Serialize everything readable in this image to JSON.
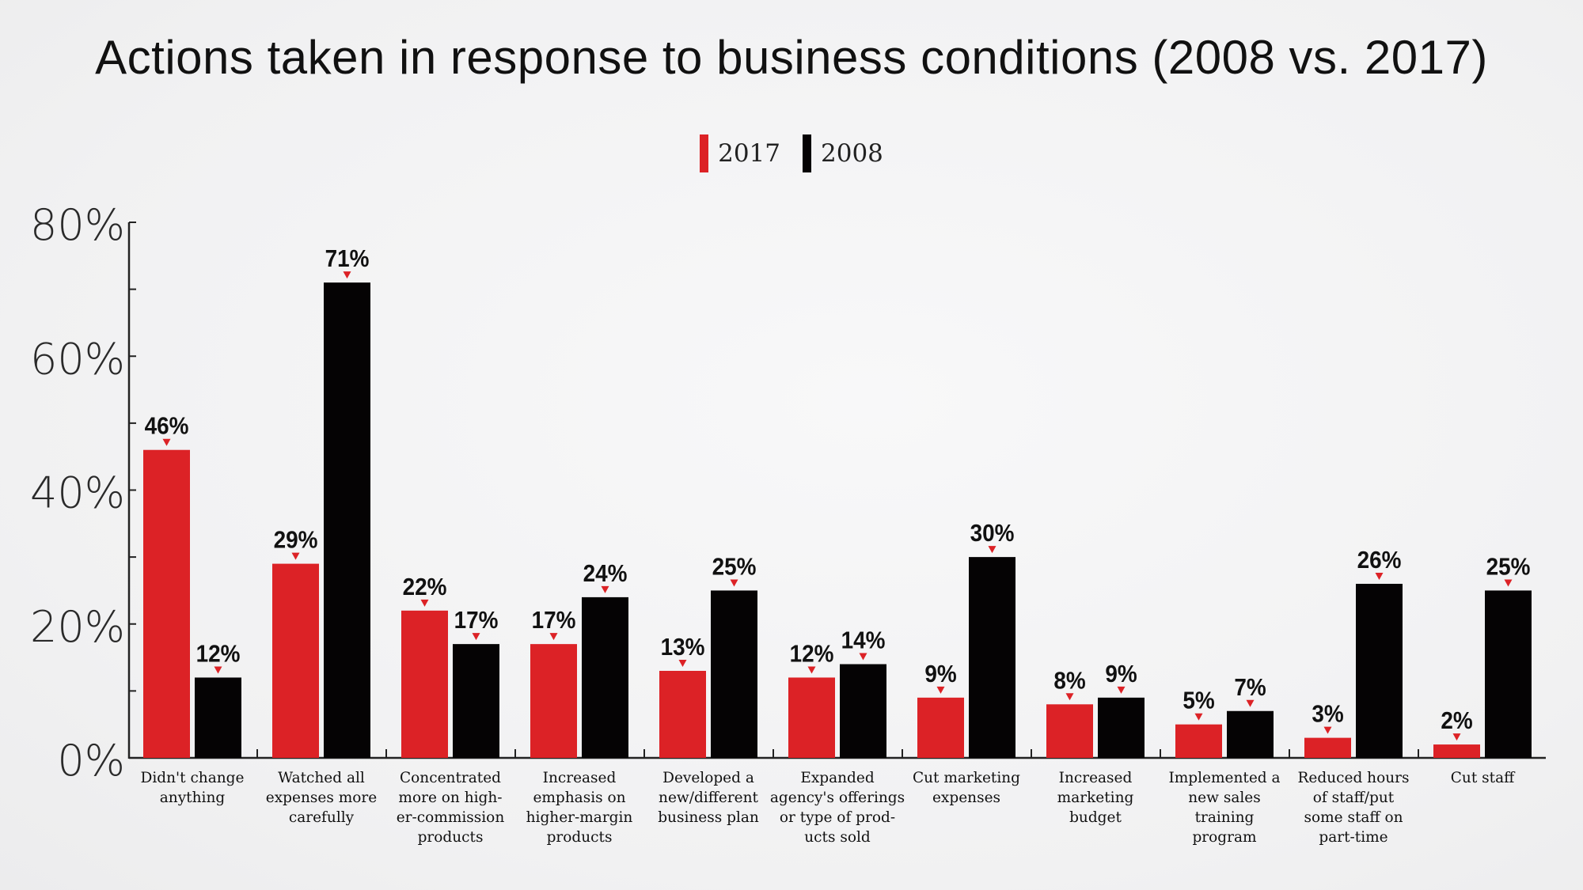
{
  "chart_data": {
    "type": "bar",
    "title": "Actions taken in response to business conditions (2008 vs. 2017)",
    "xlabel": "",
    "ylabel": "",
    "ylim": [
      0,
      80
    ],
    "yticks": [
      "0%",
      "20%",
      "40%",
      "60%",
      "80%"
    ],
    "grid": false,
    "legend_placement": "top-center",
    "categories": [
      [
        "Didn't change",
        "anything"
      ],
      [
        "Watched all",
        "expenses more",
        "carefully"
      ],
      [
        "Concentrated",
        "more on high-",
        "er-commission",
        "products"
      ],
      [
        "Increased",
        "emphasis on",
        "higher-margin",
        "products"
      ],
      [
        "Developed a",
        "new/different",
        "business plan"
      ],
      [
        "Expanded",
        "agency's offerings",
        "or type of prod-",
        "ucts sold"
      ],
      [
        "Cut marketing",
        "expenses"
      ],
      [
        "Increased",
        "marketing",
        "budget"
      ],
      [
        "Implemented a",
        "new sales",
        "training",
        "program"
      ],
      [
        "Reduced hours",
        "of staff/put",
        "some staff on",
        "part-time"
      ],
      [
        "Cut staff"
      ]
    ],
    "series": [
      {
        "name": "2017",
        "color": "#dc2226",
        "values": [
          46,
          29,
          22,
          17,
          13,
          12,
          9,
          8,
          5,
          3,
          2
        ],
        "labels": [
          "46%",
          "29%",
          "22%",
          "17%",
          "13%",
          "12%",
          "9%",
          "8%",
          "5%",
          "3%",
          "2%"
        ]
      },
      {
        "name": "2008",
        "color": "#050304",
        "values": [
          12,
          71,
          17,
          24,
          25,
          14,
          30,
          9,
          7,
          26,
          25
        ],
        "labels": [
          "12%",
          "71%",
          "17%",
          "24%",
          "25%",
          "14%",
          "30%",
          "9%",
          "7%",
          "26%",
          "25%"
        ]
      }
    ],
    "marker_color": "#dc2226"
  }
}
